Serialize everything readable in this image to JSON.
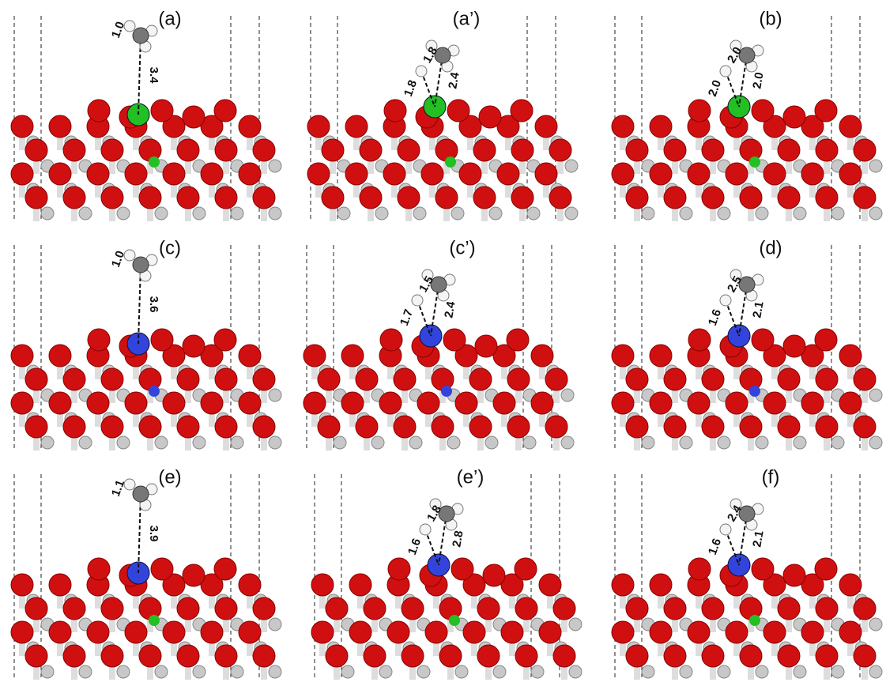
{
  "panels": [
    {
      "label": "(a)",
      "distances": [
        "1.0",
        "3.4"
      ]
    },
    {
      "label": "(a’)",
      "distances": [
        "1.8",
        "1.8",
        "2.4"
      ]
    },
    {
      "label": "(b)",
      "distances": [
        "2.0",
        "2.0",
        "2.0"
      ]
    },
    {
      "label": "(c)",
      "distances": [
        "1.0",
        "3.6"
      ]
    },
    {
      "label": "(c’)",
      "distances": [
        "1.5",
        "1.7",
        "2.4"
      ]
    },
    {
      "label": "(d)",
      "distances": [
        "2.5",
        "1.6",
        "2.1"
      ]
    },
    {
      "label": "(e)",
      "distances": [
        "1.1",
        "3.9"
      ]
    },
    {
      "label": "(e’)",
      "distances": [
        "1.8",
        "1.6",
        "2.8"
      ]
    },
    {
      "label": "(f)",
      "distances": [
        "2.4",
        "1.6",
        "2.1"
      ]
    }
  ]
}
